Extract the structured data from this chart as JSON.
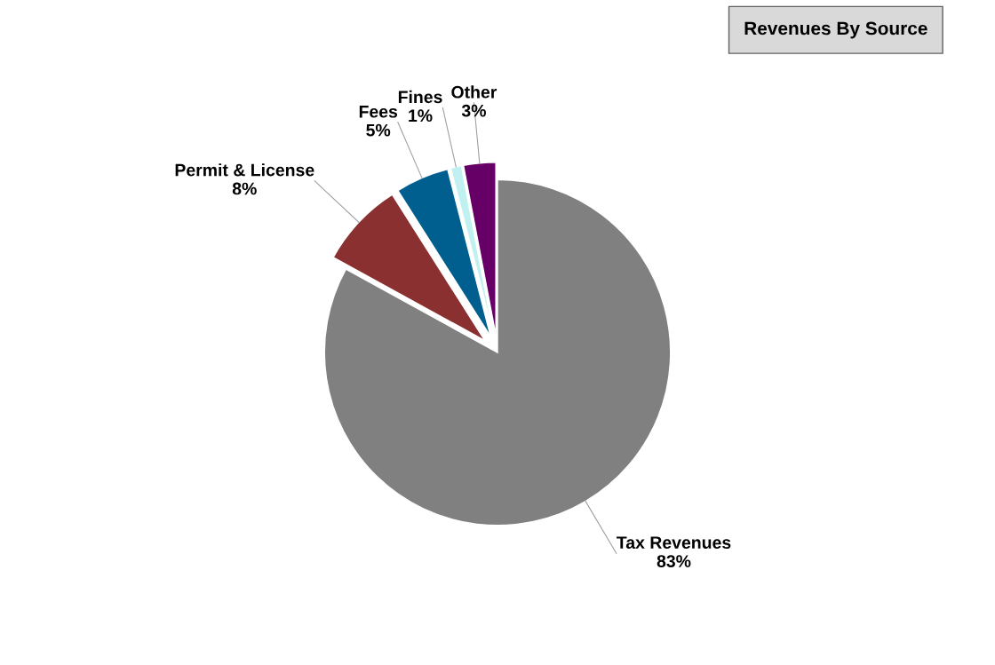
{
  "chart_data": {
    "type": "pie",
    "title": "Revenues By Source",
    "categories": [
      "Tax Revenues",
      "Permit & License",
      "Fees",
      "Fines",
      "Other"
    ],
    "values": [
      83,
      8,
      5,
      1,
      3
    ],
    "colors": [
      "#808080",
      "#8b3030",
      "#005f8f",
      "#c0f0f0",
      "#660066"
    ],
    "value_labels": [
      "83%",
      "8%",
      "5%",
      "1%",
      "3%"
    ],
    "legend": false
  }
}
